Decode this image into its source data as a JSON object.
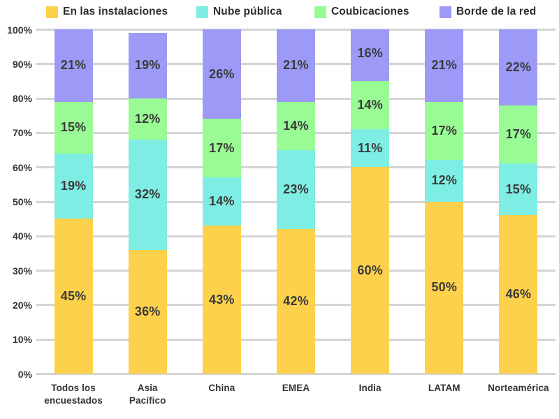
{
  "chart_data": {
    "type": "bar",
    "stacked": true,
    "percent_stacked": true,
    "title": "",
    "xlabel": "",
    "ylabel": "",
    "ylim": [
      0,
      100
    ],
    "grid": true,
    "legend_position": "top",
    "y_tick_labels": [
      "0%",
      "10%",
      "20%",
      "30%",
      "40%",
      "50%",
      "60%",
      "70%",
      "80%",
      "90%",
      "100%"
    ],
    "categories": [
      "Todos los\nencuestados",
      "Asia\nPacífico",
      "China",
      "EMEA",
      "India",
      "LATAM",
      "Norteamérica"
    ],
    "series": [
      {
        "name": "En las instalaciones",
        "color": "#FDD14B",
        "values": [
          45,
          36,
          43,
          42,
          60,
          50,
          46
        ]
      },
      {
        "name": "Nube pública",
        "color": "#7EEDE3",
        "values": [
          19,
          32,
          14,
          23,
          11,
          12,
          15
        ]
      },
      {
        "name": "Coubicaciones",
        "color": "#98FB94",
        "values": [
          15,
          12,
          17,
          14,
          14,
          17,
          17
        ]
      },
      {
        "name": "Borde de la red",
        "color": "#9D9AF7",
        "values": [
          21,
          19,
          26,
          21,
          16,
          21,
          22
        ]
      }
    ],
    "data_label_suffix": "%"
  },
  "style_colors": {
    "background": "#FFFFFF",
    "gridline": "#D4D4D4",
    "axis_text": "#333333",
    "data_label_text": "#3A3A3A",
    "legend_text": "#2E2E2E"
  },
  "layout_hints": {
    "legend_item_lefts": [
      66,
      281,
      450,
      629
    ]
  }
}
